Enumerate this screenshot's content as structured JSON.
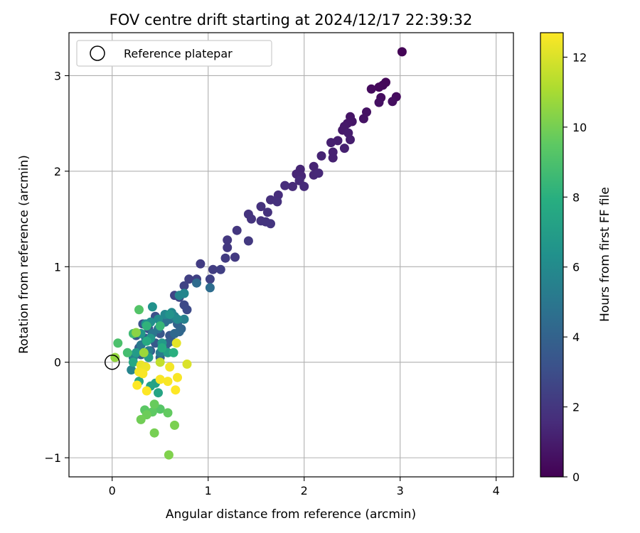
{
  "chart_data": {
    "type": "scatter",
    "title": "FOV centre drift starting at 2024/12/17 22:39:32",
    "xlabel": "Angular distance from reference (arcmin)",
    "ylabel": "Rotation from reference (arcmin)",
    "xlim": [
      -0.45,
      4.18
    ],
    "ylim": [
      -1.2,
      3.45
    ],
    "xticks": [
      0,
      1,
      2,
      3,
      4
    ],
    "yticks": [
      -1,
      0,
      1,
      2,
      3
    ],
    "xtick_labels": [
      "0",
      "1",
      "2",
      "3",
      "4"
    ],
    "ytick_labels": [
      "−1",
      "0",
      "1",
      "2",
      "3"
    ],
    "grid": true,
    "legend": {
      "placement": "top-left",
      "label": "Reference platepar"
    },
    "reference_point": {
      "x": 0,
      "y": 0
    },
    "colorbar": {
      "label": "Hours from first FF file",
      "min": 0,
      "max": 12.7,
      "ticks": [
        0,
        2,
        4,
        6,
        8,
        10,
        12
      ],
      "tick_labels": [
        "0",
        "2",
        "4",
        "6",
        "8",
        "10",
        "12"
      ],
      "colormap": "viridis"
    },
    "points": [
      [
        3.02,
        3.25,
        0.1
      ],
      [
        2.85,
        2.93,
        0.2
      ],
      [
        2.82,
        2.9,
        0.25
      ],
      [
        2.78,
        2.88,
        0.3
      ],
      [
        2.7,
        2.86,
        0.35
      ],
      [
        2.96,
        2.78,
        0.4
      ],
      [
        2.8,
        2.77,
        0.45
      ],
      [
        2.92,
        2.73,
        0.5
      ],
      [
        2.78,
        2.72,
        0.55
      ],
      [
        2.65,
        2.62,
        0.6
      ],
      [
        2.62,
        2.55,
        0.65
      ],
      [
        2.48,
        2.57,
        0.7
      ],
      [
        2.5,
        2.52,
        0.75
      ],
      [
        2.45,
        2.5,
        0.8
      ],
      [
        2.42,
        2.47,
        0.85
      ],
      [
        2.4,
        2.43,
        0.9
      ],
      [
        2.46,
        2.4,
        1.0
      ],
      [
        2.48,
        2.33,
        1.05
      ],
      [
        2.35,
        2.32,
        1.1
      ],
      [
        2.28,
        2.3,
        1.12
      ],
      [
        2.42,
        2.24,
        1.15
      ],
      [
        2.3,
        2.2,
        1.18
      ],
      [
        2.3,
        2.14,
        1.2
      ],
      [
        2.18,
        2.16,
        1.25
      ],
      [
        2.1,
        2.05,
        1.3
      ],
      [
        1.96,
        2.02,
        1.32
      ],
      [
        1.92,
        1.97,
        1.35
      ],
      [
        1.97,
        1.95,
        1.38
      ],
      [
        2.1,
        1.96,
        1.4
      ],
      [
        2.15,
        1.98,
        1.45
      ],
      [
        1.95,
        1.9,
        1.5
      ],
      [
        1.88,
        1.84,
        1.52
      ],
      [
        2.0,
        1.84,
        1.55
      ],
      [
        1.8,
        1.85,
        1.6
      ],
      [
        1.73,
        1.75,
        1.65
      ],
      [
        1.65,
        1.7,
        1.7
      ],
      [
        1.72,
        1.68,
        1.75
      ],
      [
        1.55,
        1.63,
        1.8
      ],
      [
        1.62,
        1.57,
        1.82
      ],
      [
        1.42,
        1.55,
        1.85
      ],
      [
        1.45,
        1.5,
        1.88
      ],
      [
        1.55,
        1.48,
        1.9
      ],
      [
        1.6,
        1.47,
        1.92
      ],
      [
        1.65,
        1.45,
        1.95
      ],
      [
        1.3,
        1.38,
        2.0
      ],
      [
        1.2,
        1.28,
        2.05
      ],
      [
        1.2,
        1.2,
        2.08
      ],
      [
        1.42,
        1.27,
        2.1
      ],
      [
        1.28,
        1.1,
        2.15
      ],
      [
        1.18,
        1.09,
        2.2
      ],
      [
        0.92,
        1.03,
        2.25
      ],
      [
        1.05,
        0.97,
        2.3
      ],
      [
        1.13,
        0.97,
        2.35
      ],
      [
        0.8,
        0.87,
        2.4
      ],
      [
        0.88,
        0.87,
        2.45
      ],
      [
        1.02,
        0.87,
        2.5
      ],
      [
        0.75,
        0.8,
        2.55
      ],
      [
        0.65,
        0.7,
        2.6
      ],
      [
        0.7,
        0.68,
        2.7
      ],
      [
        0.75,
        0.6,
        2.8
      ],
      [
        0.78,
        0.55,
        2.85
      ],
      [
        0.6,
        0.5,
        2.9
      ],
      [
        0.55,
        0.45,
        3.0
      ],
      [
        0.45,
        0.48,
        3.1
      ],
      [
        0.32,
        0.4,
        3.2
      ],
      [
        0.38,
        0.35,
        3.3
      ],
      [
        0.5,
        0.3,
        3.35
      ],
      [
        0.6,
        0.28,
        3.4
      ],
      [
        0.25,
        0.28,
        3.45
      ],
      [
        0.35,
        0.25,
        3.5
      ],
      [
        0.45,
        0.2,
        3.55
      ],
      [
        0.55,
        0.15,
        3.6
      ],
      [
        0.62,
        0.22,
        3.65
      ],
      [
        0.28,
        0.15,
        3.7
      ],
      [
        0.4,
        0.12,
        3.75
      ],
      [
        0.3,
        0.08,
        3.8
      ],
      [
        0.5,
        0.05,
        3.85
      ],
      [
        0.58,
        0.2,
        3.9
      ],
      [
        0.68,
        0.4,
        4.0
      ],
      [
        0.72,
        0.35,
        4.1
      ],
      [
        0.7,
        0.32,
        4.2
      ],
      [
        0.65,
        0.3,
        4.3
      ],
      [
        0.88,
        0.83,
        4.4
      ],
      [
        1.02,
        0.78,
        4.5
      ],
      [
        0.6,
        0.45,
        4.6
      ],
      [
        0.55,
        0.42,
        4.7
      ],
      [
        0.48,
        0.35,
        4.8
      ],
      [
        0.42,
        0.3,
        4.9
      ],
      [
        0.35,
        0.22,
        5.0
      ],
      [
        0.3,
        0.18,
        5.1
      ],
      [
        0.38,
        0.12,
        5.2
      ],
      [
        0.5,
        0.1,
        5.3
      ],
      [
        0.65,
        0.48,
        5.4
      ],
      [
        0.75,
        0.45,
        5.5
      ],
      [
        0.22,
        0.05,
        5.6
      ],
      [
        0.2,
        -0.08,
        5.7
      ],
      [
        0.7,
        0.7,
        5.75
      ],
      [
        0.75,
        0.72,
        5.8
      ],
      [
        0.55,
        0.5,
        5.85
      ],
      [
        0.62,
        0.52,
        5.9
      ],
      [
        0.68,
        0.45,
        6.0
      ],
      [
        0.48,
        0.45,
        6.1
      ],
      [
        0.4,
        0.42,
        6.2
      ],
      [
        0.35,
        0.4,
        6.3
      ],
      [
        0.42,
        0.58,
        6.4
      ],
      [
        0.6,
        0.5,
        6.5
      ],
      [
        0.3,
        0.3,
        6.6
      ],
      [
        0.4,
        0.25,
        6.7
      ],
      [
        0.52,
        0.2,
        6.8
      ],
      [
        0.25,
        0.1,
        6.9
      ],
      [
        0.38,
        0.05,
        7.0
      ],
      [
        0.58,
        0.1,
        7.1
      ],
      [
        0.45,
        -0.22,
        7.2
      ],
      [
        0.4,
        -0.25,
        7.3
      ],
      [
        0.48,
        -0.32,
        7.4
      ],
      [
        0.28,
        -0.2,
        7.5
      ],
      [
        0.22,
        0.0,
        7.6
      ],
      [
        0.36,
        0.22,
        7.7
      ],
      [
        0.52,
        0.15,
        7.8
      ],
      [
        0.64,
        0.1,
        8.0
      ],
      [
        0.36,
        0.38,
        8.2
      ],
      [
        0.5,
        0.38,
        8.4
      ],
      [
        0.22,
        0.3,
        8.6
      ],
      [
        0.16,
        0.1,
        8.8
      ],
      [
        0.06,
        0.2,
        9.0
      ],
      [
        0.28,
        0.55,
        9.2
      ],
      [
        0.5,
        -0.49,
        9.3
      ],
      [
        0.34,
        -0.5,
        9.4
      ],
      [
        0.42,
        -0.52,
        9.5
      ],
      [
        0.58,
        -0.53,
        9.6
      ],
      [
        0.44,
        -0.44,
        9.7
      ],
      [
        0.36,
        -0.55,
        9.8
      ],
      [
        0.3,
        -0.6,
        9.9
      ],
      [
        0.44,
        -0.74,
        10.0
      ],
      [
        0.65,
        -0.66,
        10.1
      ],
      [
        0.59,
        -0.97,
        10.2
      ],
      [
        0.25,
        0.31,
        10.4
      ],
      [
        0.03,
        0.05,
        10.6
      ],
      [
        0.33,
        0.1,
        10.8
      ],
      [
        0.32,
        -0.05,
        11.0
      ],
      [
        0.5,
        0.0,
        11.5
      ],
      [
        0.78,
        -0.02,
        12.0
      ],
      [
        0.67,
        0.2,
        12.2
      ],
      [
        0.3,
        -0.03,
        12.3
      ],
      [
        0.35,
        -0.05,
        12.4
      ],
      [
        0.28,
        -0.1,
        12.5
      ],
      [
        0.6,
        -0.05,
        12.5
      ],
      [
        0.32,
        -0.12,
        12.6
      ],
      [
        0.5,
        -0.18,
        12.6
      ],
      [
        0.58,
        -0.2,
        12.6
      ],
      [
        0.68,
        -0.16,
        12.6
      ],
      [
        0.26,
        -0.24,
        12.7
      ],
      [
        0.66,
        -0.29,
        12.7
      ],
      [
        0.36,
        -0.3,
        12.7
      ]
    ]
  }
}
